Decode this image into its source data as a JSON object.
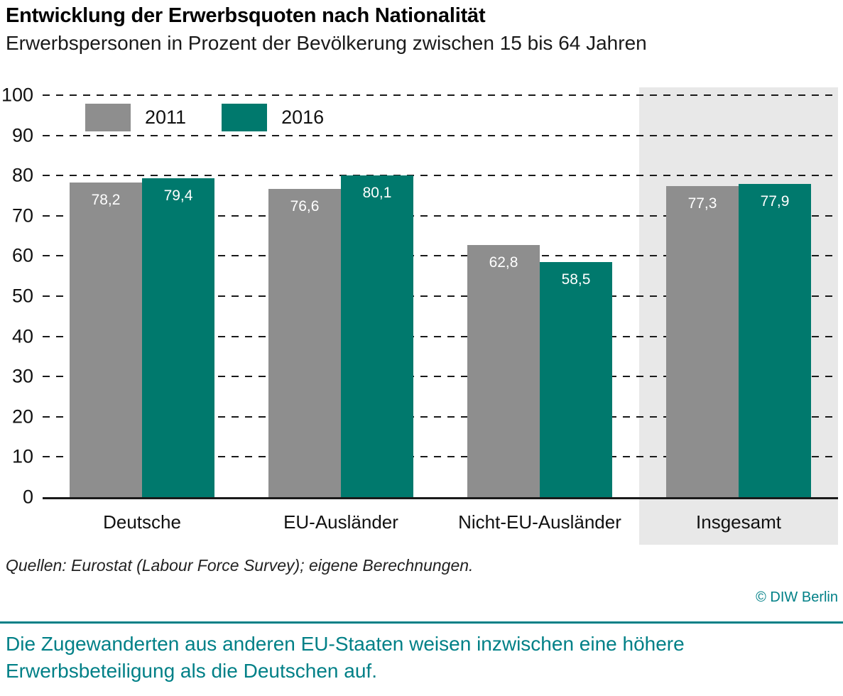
{
  "header": {
    "title": "Entwicklung der Erwerbsquoten nach Nationalität",
    "subtitle": "Erwerbspersonen in Prozent der Bevölkerung zwischen 15 bis 64 Jahren"
  },
  "chart_data": {
    "type": "bar",
    "title": "Entwicklung der Erwerbsquoten nach Nationalität",
    "subtitle": "Erwerbspersonen in Prozent der Bevölkerung zwischen 15 bis 64 Jahren",
    "categories": [
      "Deutsche",
      "EU-Ausländer",
      "Nicht-EU-Ausländer",
      "Insgesamt"
    ],
    "series": [
      {
        "name": "2011",
        "color": "#8e8e8e",
        "values": [
          78.2,
          76.6,
          62.8,
          77.3
        ]
      },
      {
        "name": "2016",
        "color": "#00796d",
        "values": [
          79.4,
          80.1,
          58.5,
          77.9
        ]
      }
    ],
    "ylim": [
      0,
      100
    ],
    "ytick_step": 10,
    "grid": "dashed-horizontal",
    "legend_position": "top-left-inside",
    "highlighted_category": "Insgesamt",
    "highlight_color": "#e8e8e8",
    "decimal_separator": ","
  },
  "footer": {
    "source": "Quellen: Eurostat (Labour Force Survey); eigene Berechnungen.",
    "copyright": "© DIW Berlin",
    "caption": "Die Zugewanderten aus anderen EU-Staaten weisen inzwischen eine höhere Erwerbs­beteiligung als die Deutschen auf."
  },
  "colors": {
    "bar_2011": "#8e8e8e",
    "bar_2016": "#00796d",
    "highlight_band": "#e8e8e8",
    "accent_teal": "#008087",
    "grid": "#1a1a1a"
  }
}
